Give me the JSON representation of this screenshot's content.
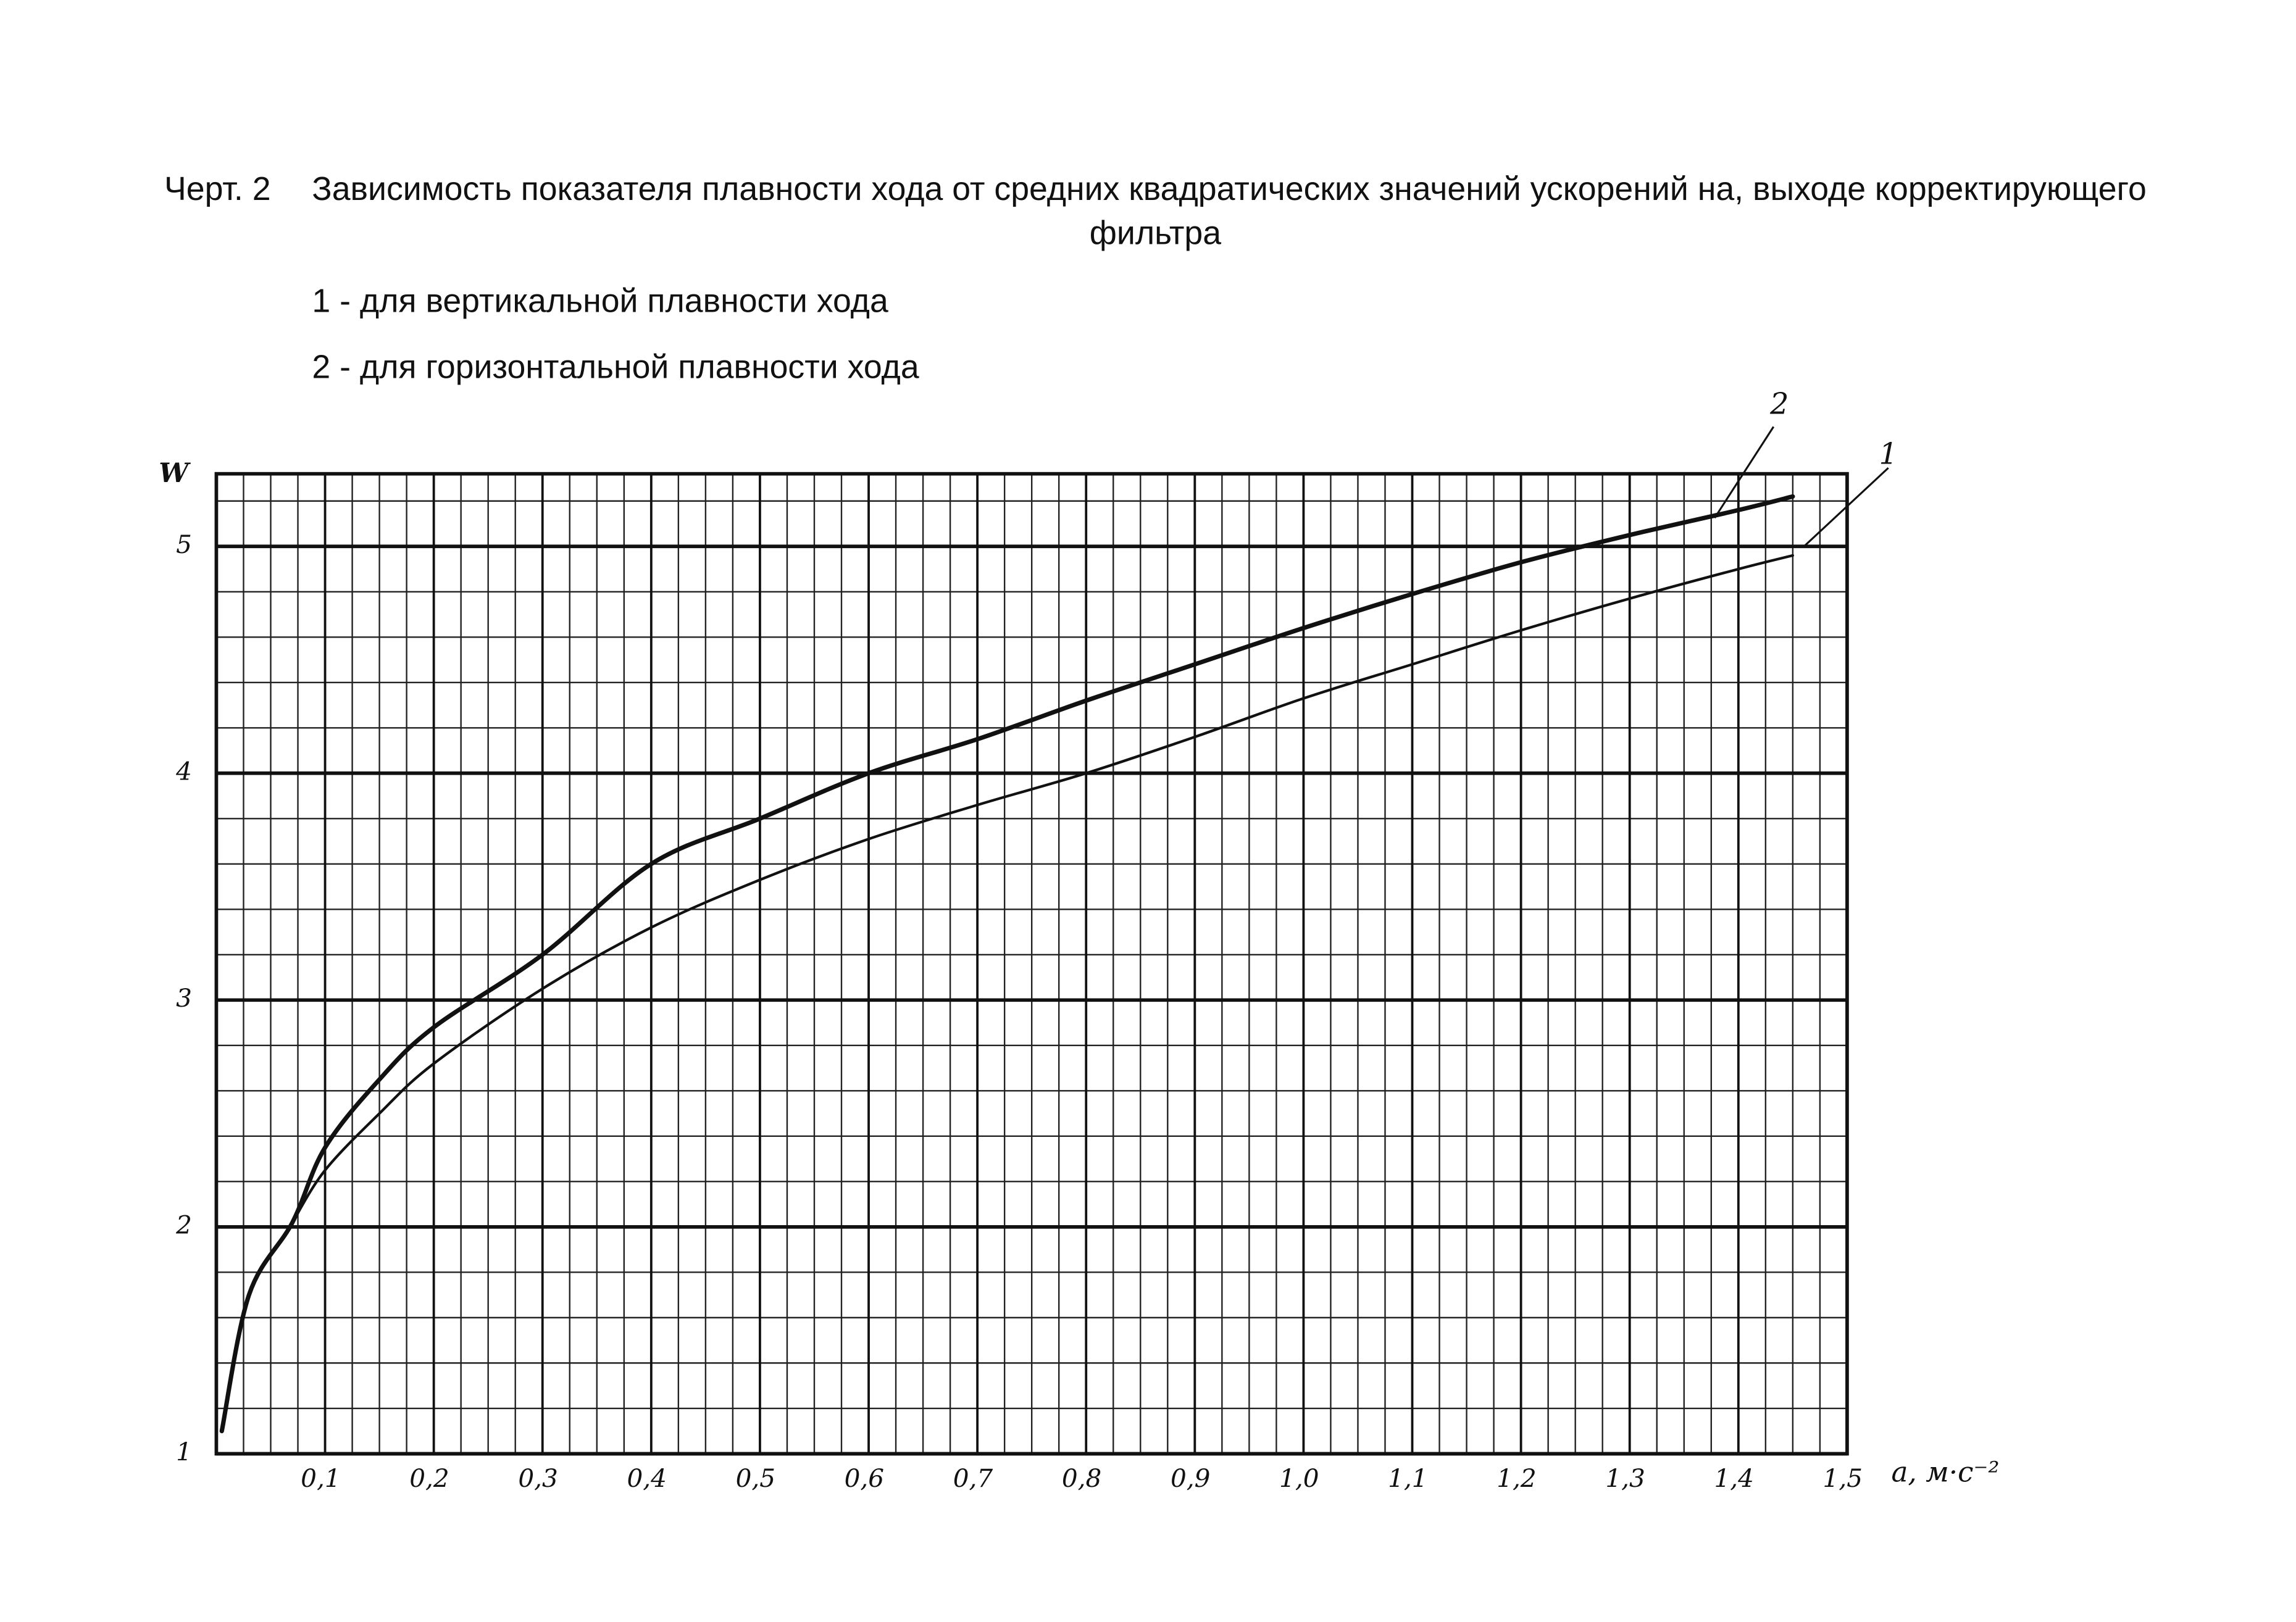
{
  "chart_data": {
    "type": "line",
    "figure_label": "Черт. 2",
    "title": "Зависимость показателя плавности хода от средних квадратических значений ускорений на, выходе корректирующего фильтра",
    "x_label": "a, м·с⁻²",
    "y_label": "W",
    "x": [
      0.005,
      0.03,
      0.07,
      0.1,
      0.15,
      0.2,
      0.3,
      0.4,
      0.5,
      0.6,
      0.7,
      0.8,
      0.9,
      1.0,
      1.1,
      1.2,
      1.3,
      1.4,
      1.45
    ],
    "series": [
      {
        "name": "1 - для вертикальной плавности хода",
        "label": "1",
        "color": "#111111",
        "width": 1.8,
        "values": [
          null,
          null,
          2.02,
          2.25,
          2.5,
          2.72,
          3.05,
          3.32,
          3.53,
          3.71,
          3.86,
          4.0,
          4.16,
          4.33,
          4.48,
          4.63,
          4.77,
          4.9,
          4.96
        ]
      },
      {
        "name": "2 - для горизонтальной плавности хода",
        "label": "2",
        "color": "#111111",
        "width": 3,
        "values": [
          1.1,
          1.7,
          2.02,
          2.35,
          2.65,
          2.88,
          3.2,
          3.6,
          3.8,
          4.0,
          4.15,
          4.32,
          4.48,
          4.64,
          4.79,
          4.93,
          5.05,
          5.16,
          5.22
        ]
      }
    ],
    "xlim": [
      0,
      1.5
    ],
    "ylim": [
      1,
      5.32
    ],
    "xticks": [
      {
        "value": 0.1,
        "label": "0,1"
      },
      {
        "value": 0.2,
        "label": "0,2"
      },
      {
        "value": 0.3,
        "label": "0,3"
      },
      {
        "value": 0.4,
        "label": "0,4"
      },
      {
        "value": 0.5,
        "label": "0,5"
      },
      {
        "value": 0.6,
        "label": "0,6"
      },
      {
        "value": 0.7,
        "label": "0,7"
      },
      {
        "value": 0.8,
        "label": "0,8"
      },
      {
        "value": 0.9,
        "label": "0,9"
      },
      {
        "value": 1.0,
        "label": "1,0"
      },
      {
        "value": 1.1,
        "label": "1,1"
      },
      {
        "value": 1.2,
        "label": "1,2"
      },
      {
        "value": 1.3,
        "label": "1,3"
      },
      {
        "value": 1.4,
        "label": "1,4"
      },
      {
        "value": 1.5,
        "label": "1,5"
      }
    ],
    "yticks": [
      1,
      2,
      3,
      4,
      5
    ],
    "grid": true
  }
}
